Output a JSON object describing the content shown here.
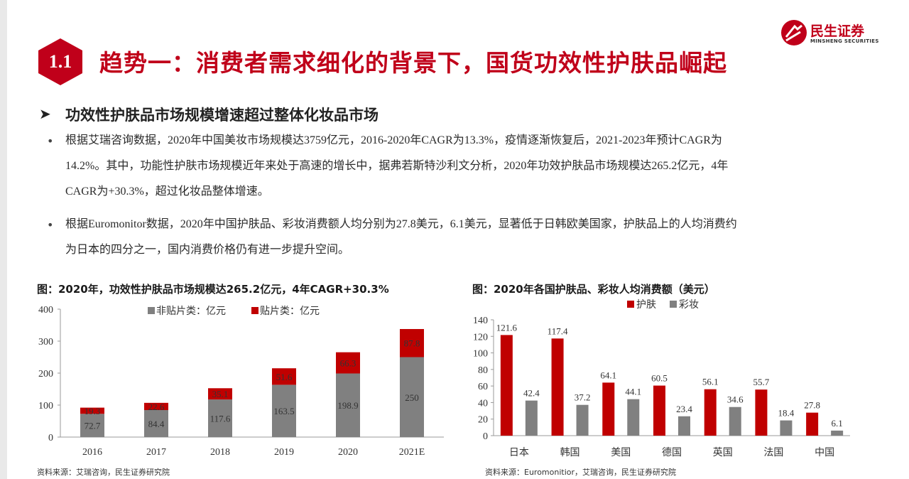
{
  "header": {
    "section_number": "1.1",
    "title": "趋势一：消费者需求细化的背景下，国货功效性护肤品崛起",
    "logo_cn": "民生证券",
    "logo_en": "MINSHENG SECURITIES"
  },
  "subheading": "功效性护肤品市场规模增速超过整体化妆品市场",
  "bullets": [
    {
      "lines": [
        "根据艾瑞咨询数据，2020年中国美妆市场规模达3759亿元，2016-2020年CAGR为13.3%，疫情逐渐恢复后，2021-2023年预计CAGR为",
        "14.2%。其中，功能性护肤市场规模近年来处于高速的增长中，据弗若斯特沙利文分析，2020年功效护肤品市场规模达265.2亿元，4年",
        "CAGR为+30.3%，超过化妆品整体增速。"
      ]
    },
    {
      "lines": [
        "根据Euromonitor数据，2020年中国护肤品、彩妆消费额人均分别为27.8美元，6.1美元，显著低于日韩欧美国家，护肤品上的人均消费约",
        "为日本的四分之一，国内消费价格仍有进一步提升空间。"
      ]
    }
  ],
  "figures": {
    "left": {
      "title": "图：2020年，功效性护肤品市场规模达265.2亿元，4年CAGR+30.3%",
      "source": "资料来源：艾瑞咨询，民生证券研究院"
    },
    "right": {
      "title": "图：2020年各国护肤品、彩妆人均消费额（美元）",
      "source": "资料来源：Euromonitior，艾瑞咨询，民生证券研究院"
    }
  },
  "chart_data": [
    {
      "type": "bar",
      "stacked": true,
      "categories": [
        "2016",
        "2017",
        "2018",
        "2019",
        "2020",
        "2021E"
      ],
      "series": [
        {
          "name": "非贴片类：亿元",
          "color": "#808080",
          "values": [
            72.7,
            84.4,
            117.6,
            163.5,
            198.9,
            250
          ]
        },
        {
          "name": "贴片类：亿元",
          "color": "#c00000",
          "values": [
            19.3,
            22.6,
            35.1,
            51.6,
            66.3,
            87.8
          ]
        }
      ],
      "ylim": [
        0,
        400
      ],
      "yticks": [
        "0",
        "100",
        "200",
        "300",
        "400"
      ],
      "legend": "top"
    },
    {
      "type": "bar",
      "categories": [
        "日本",
        "韩国",
        "美国",
        "德国",
        "英国",
        "法国",
        "中国"
      ],
      "series": [
        {
          "name": "护肤",
          "color": "#c00000",
          "values": [
            121.6,
            117.4,
            64.1,
            60.5,
            56.1,
            55.7,
            27.8
          ]
        },
        {
          "name": "彩妆",
          "color": "#808080",
          "values": [
            42.4,
            37.2,
            44.1,
            23.4,
            34.6,
            18.4,
            6.1
          ]
        }
      ],
      "ylim": [
        0,
        140
      ],
      "yticks": [
        "0",
        "20",
        "40",
        "60",
        "80",
        "100",
        "120",
        "140"
      ],
      "legend": "top"
    }
  ]
}
